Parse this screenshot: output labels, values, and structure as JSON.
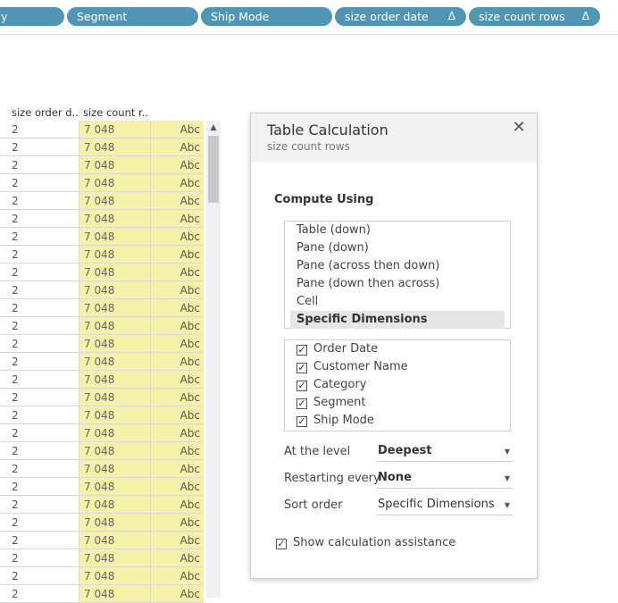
{
  "shelf": {
    "pills": [
      {
        "label": "y",
        "delta": ""
      },
      {
        "label": "Segment",
        "delta": ""
      },
      {
        "label": "Ship Mode",
        "delta": ""
      },
      {
        "label": "size order date",
        "delta": "Δ"
      },
      {
        "label": "size count rows",
        "delta": "Δ"
      }
    ]
  },
  "table": {
    "headers": [
      "size order d..",
      "size count r.."
    ],
    "col1_value": "2",
    "col2_value": "7 048",
    "col3_value": "Abc"
  },
  "dialog": {
    "title": "Table Calculation",
    "subtitle": "size count rows",
    "close_glyph": "✕",
    "compute_using_label": "Compute Using",
    "compute_options": [
      {
        "label": "Table (down)",
        "selected": false
      },
      {
        "label": "Pane (down)",
        "selected": false
      },
      {
        "label": "Pane (across then down)",
        "selected": false
      },
      {
        "label": "Pane (down then across)",
        "selected": false
      },
      {
        "label": "Cell",
        "selected": false
      },
      {
        "label": "Specific Dimensions",
        "selected": true
      }
    ],
    "dimensions": [
      {
        "label": "Order Date",
        "checked": true
      },
      {
        "label": "Customer Name",
        "checked": true
      },
      {
        "label": "Category",
        "checked": true
      },
      {
        "label": "Segment",
        "checked": true
      },
      {
        "label": "Ship Mode",
        "checked": true
      }
    ],
    "at_level": {
      "label": "At the level",
      "value": "Deepest"
    },
    "restarting": {
      "label": "Restarting every",
      "value": "None"
    },
    "sort_order": {
      "label": "Sort order",
      "value": "Specific Dimensions"
    },
    "assistance": {
      "label": "Show calculation assistance",
      "checked": true
    },
    "check_glyph": "✓"
  }
}
